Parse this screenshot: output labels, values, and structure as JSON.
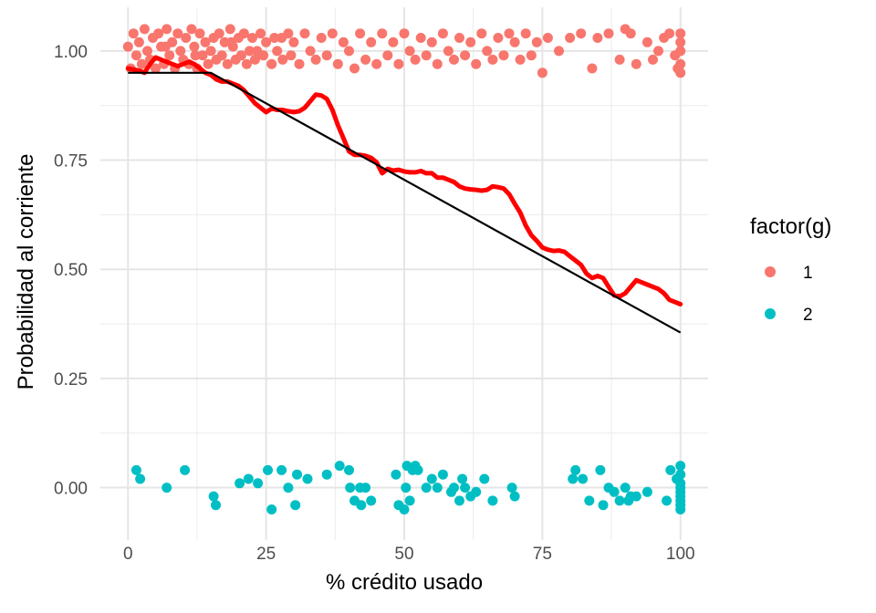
{
  "chart_data": {
    "type": "scatter",
    "xlabel": "% crédito usado",
    "ylabel": "Probabilidad al corriente",
    "xlim": [
      -5,
      105
    ],
    "ylim": [
      -0.12,
      1.1
    ],
    "x_ticks": [
      0,
      25,
      50,
      75,
      100
    ],
    "x_tick_labels": [
      "0",
      "25",
      "50",
      "75",
      "100"
    ],
    "y_ticks": [
      0,
      0.25,
      0.5,
      0.75,
      1
    ],
    "y_tick_labels": [
      "0.00",
      "0.25",
      "0.50",
      "0.75",
      "1.00"
    ],
    "grid": true,
    "legend": {
      "title": "factor(g)",
      "position": "right",
      "entries": [
        {
          "label": "1",
          "color": "#F8766D"
        },
        {
          "label": "2",
          "color": "#00BFC4"
        }
      ]
    },
    "series": [
      {
        "group": "1",
        "color": "#F8766D",
        "points": [
          [
            0,
            1.01
          ],
          [
            0.5,
            0.96
          ],
          [
            1,
            1.04
          ],
          [
            1.5,
            0.99
          ],
          [
            2,
            1.02
          ],
          [
            2.5,
            0.97
          ],
          [
            3,
            1.05
          ],
          [
            3.5,
            1.0
          ],
          [
            4,
            0.98
          ],
          [
            4.5,
            1.03
          ],
          [
            5,
            0.96
          ],
          [
            5.5,
            1.04
          ],
          [
            6,
            1.01
          ],
          [
            6.5,
            0.97
          ],
          [
            7,
            1.05
          ],
          [
            7.5,
            0.99
          ],
          [
            8,
            1.02
          ],
          [
            8.5,
            0.96
          ],
          [
            9,
            1.04
          ],
          [
            9.5,
            1.0
          ],
          [
            10,
            0.98
          ],
          [
            10.5,
            1.03
          ],
          [
            11,
            0.97
          ],
          [
            11.5,
            1.05
          ],
          [
            12,
            1.01
          ],
          [
            12.5,
            0.96
          ],
          [
            13,
            1.04
          ],
          [
            13.5,
            0.99
          ],
          [
            14,
            1.02
          ],
          [
            14.5,
            0.97
          ],
          [
            15,
            1.0
          ],
          [
            15.5,
            1.03
          ],
          [
            16,
            0.98
          ],
          [
            16.5,
            1.04
          ],
          [
            17,
            0.99
          ],
          [
            17.5,
            1.02
          ],
          [
            18,
            0.97
          ],
          [
            18.5,
            1.05
          ],
          [
            19,
            1.01
          ],
          [
            19.5,
            0.98
          ],
          [
            20,
            1.03
          ],
          [
            20.5,
            0.99
          ],
          [
            21,
            1.04
          ],
          [
            21.5,
            0.97
          ],
          [
            22,
            1.0
          ],
          [
            22.5,
            1.03
          ],
          [
            23,
            0.98
          ],
          [
            24,
            1.04
          ],
          [
            24.5,
            0.99
          ],
          [
            25,
            1.02
          ],
          [
            26,
            0.97
          ],
          [
            26.5,
            1.03
          ],
          [
            27,
            1.0
          ],
          [
            28,
            0.98
          ],
          [
            29,
            1.04
          ],
          [
            29.5,
            0.99
          ],
          [
            30,
            1.02
          ],
          [
            31,
            0.97
          ],
          [
            32,
            1.04
          ],
          [
            33,
            1.0
          ],
          [
            34,
            0.98
          ],
          [
            35,
            1.03
          ],
          [
            36,
            0.99
          ],
          [
            37,
            1.04
          ],
          [
            38,
            0.97
          ],
          [
            39,
            1.02
          ],
          [
            40,
            1.0
          ],
          [
            41,
            0.96
          ],
          [
            42,
            1.04
          ],
          [
            43,
            0.98
          ],
          [
            44,
            1.02
          ],
          [
            45,
            0.97
          ],
          [
            46,
            1.04
          ],
          [
            47,
            0.99
          ],
          [
            48,
            1.02
          ],
          [
            49,
            0.97
          ],
          [
            50,
            1.04
          ],
          [
            51,
            1.0
          ],
          [
            52,
            0.98
          ],
          [
            53,
            1.03
          ],
          [
            54,
            0.99
          ],
          [
            55,
            1.02
          ],
          [
            56,
            0.97
          ],
          [
            57,
            1.04
          ],
          [
            58,
            1.0
          ],
          [
            59,
            0.98
          ],
          [
            60,
            1.03
          ],
          [
            61,
            0.99
          ],
          [
            62,
            1.02
          ],
          [
            63,
            0.97
          ],
          [
            64,
            1.04
          ],
          [
            65,
            1.0
          ],
          [
            66,
            0.98
          ],
          [
            67,
            1.03
          ],
          [
            68,
            0.99
          ],
          [
            69,
            1.04
          ],
          [
            70,
            1.02
          ],
          [
            71,
            0.98
          ],
          [
            72,
            1.04
          ],
          [
            73,
            0.99
          ],
          [
            74,
            1.02
          ],
          [
            75,
            0.95
          ],
          [
            76,
            1.03
          ],
          [
            78,
            1.0
          ],
          [
            80,
            1.03
          ],
          [
            82,
            1.04
          ],
          [
            84,
            0.96
          ],
          [
            85,
            1.03
          ],
          [
            87,
            1.04
          ],
          [
            89,
            0.98
          ],
          [
            90,
            1.05
          ],
          [
            91,
            1.04
          ],
          [
            92,
            0.97
          ],
          [
            94,
            1.02
          ],
          [
            95,
            0.98
          ],
          [
            96,
            1.0
          ],
          [
            97,
            1.03
          ],
          [
            98,
            1.04
          ],
          [
            99,
            0.99
          ],
          [
            99.5,
            0.96
          ],
          [
            100,
            1.04
          ],
          [
            100,
            0.97
          ],
          [
            100,
            1.0
          ],
          [
            100,
            0.95
          ],
          [
            100,
            1.02
          ],
          [
            6.8,
            1.01
          ],
          [
            12.2,
            0.99
          ],
          [
            18.7,
            1.02
          ],
          [
            23.4,
            1.0
          ],
          [
            27.8,
            1.03
          ]
        ]
      },
      {
        "group": "2",
        "color": "#00BFC4",
        "points": [
          [
            1.5,
            0.04
          ],
          [
            2.2,
            0.02
          ],
          [
            7,
            0.0
          ],
          [
            10.3,
            0.04
          ],
          [
            15.5,
            -0.02
          ],
          [
            15.9,
            -0.04
          ],
          [
            20.2,
            0.01
          ],
          [
            21.8,
            0.02
          ],
          [
            23.5,
            0.01
          ],
          [
            25.3,
            0.04
          ],
          [
            26,
            -0.05
          ],
          [
            27.8,
            0.04
          ],
          [
            29,
            0.0
          ],
          [
            30.3,
            -0.04
          ],
          [
            30.6,
            0.03
          ],
          [
            32.5,
            0.02
          ],
          [
            36,
            0.03
          ],
          [
            38.3,
            0.05
          ],
          [
            40,
            0.04
          ],
          [
            40.2,
            0.0
          ],
          [
            41,
            -0.03
          ],
          [
            42,
            0.0
          ],
          [
            42.2,
            -0.04
          ],
          [
            43,
            0.0
          ],
          [
            44,
            -0.03
          ],
          [
            48.5,
            0.03
          ],
          [
            49,
            -0.04
          ],
          [
            50,
            -0.05
          ],
          [
            50.3,
            0.0
          ],
          [
            50.5,
            0.05
          ],
          [
            51,
            -0.03
          ],
          [
            51.5,
            0.04
          ],
          [
            52,
            0.05
          ],
          [
            52.5,
            0.04
          ],
          [
            54,
            0.0
          ],
          [
            55,
            0.02
          ],
          [
            56,
            0.0
          ],
          [
            57,
            0.03
          ],
          [
            58.5,
            -0.01
          ],
          [
            59,
            0.0
          ],
          [
            60,
            -0.03
          ],
          [
            60.5,
            0.02
          ],
          [
            61,
            0.0
          ],
          [
            62,
            -0.02
          ],
          [
            63,
            -0.01
          ],
          [
            64.5,
            0.02
          ],
          [
            66,
            -0.03
          ],
          [
            69.5,
            0.0
          ],
          [
            70,
            -0.02
          ],
          [
            80.5,
            0.02
          ],
          [
            81,
            0.04
          ],
          [
            82.3,
            0.02
          ],
          [
            83.5,
            -0.03
          ],
          [
            85.5,
            0.04
          ],
          [
            86,
            -0.04
          ],
          [
            87,
            0.0
          ],
          [
            88,
            -0.01
          ],
          [
            89,
            -0.03
          ],
          [
            90,
            0.0
          ],
          [
            90.6,
            -0.03
          ],
          [
            91,
            -0.02
          ],
          [
            92,
            -0.02
          ],
          [
            94,
            -0.01
          ],
          [
            97.5,
            -0.03
          ],
          [
            98.2,
            0.04
          ],
          [
            99.3,
            0.02
          ],
          [
            100,
            0.05
          ],
          [
            100,
            0.03
          ],
          [
            100,
            0.01
          ],
          [
            100,
            -0.01
          ],
          [
            100,
            -0.02
          ],
          [
            100,
            -0.03
          ],
          [
            100,
            -0.04
          ],
          [
            100,
            -0.05
          ],
          [
            100,
            0.0
          ]
        ]
      }
    ],
    "smooth_line": {
      "color": "#FF0000",
      "points": [
        [
          0,
          0.96
        ],
        [
          2,
          0.955
        ],
        [
          3,
          0.95
        ],
        [
          4,
          0.97
        ],
        [
          5,
          0.985
        ],
        [
          6,
          0.98
        ],
        [
          7,
          0.975
        ],
        [
          8,
          0.97
        ],
        [
          9,
          0.965
        ],
        [
          10,
          0.97
        ],
        [
          11,
          0.975
        ],
        [
          12,
          0.97
        ],
        [
          13,
          0.96
        ],
        [
          14,
          0.95
        ],
        [
          15,
          0.945
        ],
        [
          16,
          0.935
        ],
        [
          17,
          0.93
        ],
        [
          18,
          0.93
        ],
        [
          19,
          0.925
        ],
        [
          20,
          0.92
        ],
        [
          21,
          0.91
        ],
        [
          22,
          0.895
        ],
        [
          23,
          0.88
        ],
        [
          24,
          0.87
        ],
        [
          25,
          0.86
        ],
        [
          26,
          0.868
        ],
        [
          27,
          0.865
        ],
        [
          28,
          0.865
        ],
        [
          29,
          0.862
        ],
        [
          30,
          0.86
        ],
        [
          31,
          0.862
        ],
        [
          32,
          0.87
        ],
        [
          33,
          0.885
        ],
        [
          34,
          0.9
        ],
        [
          35,
          0.898
        ],
        [
          36,
          0.89
        ],
        [
          37,
          0.865
        ],
        [
          38,
          0.83
        ],
        [
          39,
          0.8
        ],
        [
          40,
          0.77
        ],
        [
          41,
          0.762
        ],
        [
          42,
          0.762
        ],
        [
          43,
          0.76
        ],
        [
          44,
          0.755
        ],
        [
          45,
          0.745
        ],
        [
          46,
          0.72
        ],
        [
          47,
          0.73
        ],
        [
          48,
          0.726
        ],
        [
          49,
          0.728
        ],
        [
          50,
          0.724
        ],
        [
          51,
          0.722
        ],
        [
          52,
          0.722
        ],
        [
          53,
          0.725
        ],
        [
          54,
          0.72
        ],
        [
          55,
          0.72
        ],
        [
          56,
          0.71
        ],
        [
          57,
          0.71
        ],
        [
          58,
          0.705
        ],
        [
          59,
          0.7
        ],
        [
          60,
          0.69
        ],
        [
          61,
          0.685
        ],
        [
          62,
          0.683
        ],
        [
          63,
          0.682
        ],
        [
          64,
          0.68
        ],
        [
          65,
          0.682
        ],
        [
          66,
          0.69
        ],
        [
          67,
          0.688
        ],
        [
          68,
          0.685
        ],
        [
          69,
          0.672
        ],
        [
          70,
          0.65
        ],
        [
          71,
          0.63
        ],
        [
          72,
          0.6
        ],
        [
          73,
          0.578
        ],
        [
          74,
          0.565
        ],
        [
          75,
          0.55
        ],
        [
          76,
          0.545
        ],
        [
          77,
          0.542
        ],
        [
          78,
          0.543
        ],
        [
          79,
          0.54
        ],
        [
          80,
          0.53
        ],
        [
          81,
          0.52
        ],
        [
          82,
          0.51
        ],
        [
          83,
          0.49
        ],
        [
          84,
          0.48
        ],
        [
          85,
          0.485
        ],
        [
          86,
          0.48
        ],
        [
          87,
          0.46
        ],
        [
          88,
          0.44
        ],
        [
          89,
          0.438
        ],
        [
          90,
          0.445
        ],
        [
          91,
          0.46
        ],
        [
          92,
          0.475
        ],
        [
          93,
          0.47
        ],
        [
          94,
          0.465
        ],
        [
          95,
          0.46
        ],
        [
          96,
          0.455
        ],
        [
          97,
          0.445
        ],
        [
          98,
          0.43
        ],
        [
          99,
          0.425
        ],
        [
          100,
          0.42
        ]
      ]
    },
    "reference_line": {
      "color": "#000000",
      "points": [
        [
          0,
          0.95
        ],
        [
          15,
          0.95
        ],
        [
          100,
          0.355
        ]
      ]
    }
  }
}
